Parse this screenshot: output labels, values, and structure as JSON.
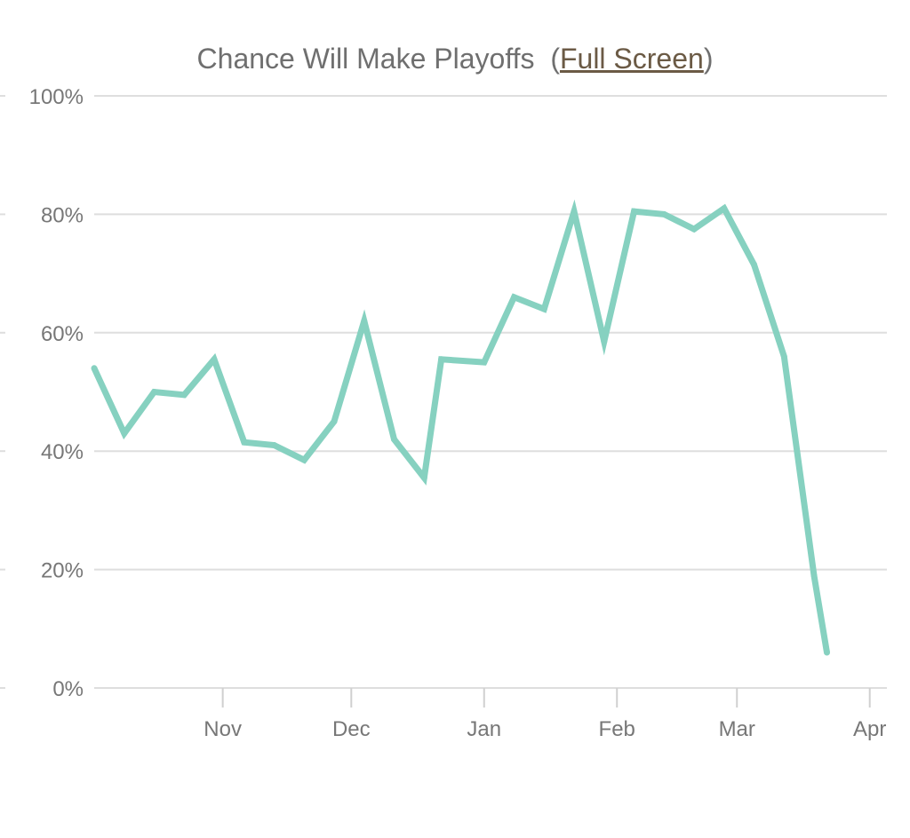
{
  "header": {
    "title": "Chance Will Make Playoffs",
    "open_paren": "(",
    "link_label": "Full Screen",
    "close_paren": ")"
  },
  "colors": {
    "line": "#86d1c0",
    "grid": "#dedede",
    "axis": "#d0d0d0",
    "text": "#777777",
    "link": "#6b5a45"
  },
  "chart_data": {
    "type": "line",
    "title": "Chance Will Make Playoffs",
    "xlabel": "",
    "ylabel": "",
    "ylim": [
      0,
      100
    ],
    "xlim": [
      "2018-10-02",
      "2019-04-07"
    ],
    "grid": true,
    "y_ticks": [
      {
        "value": 0,
        "label": "0%"
      },
      {
        "value": 20,
        "label": "20%"
      },
      {
        "value": 40,
        "label": "40%"
      },
      {
        "value": 60,
        "label": "60%"
      },
      {
        "value": 80,
        "label": "80%"
      },
      {
        "value": 100,
        "label": "100%"
      }
    ],
    "x_ticks": [
      {
        "date": "2018-11-01",
        "label": "Nov"
      },
      {
        "date": "2018-12-01",
        "label": "Dec"
      },
      {
        "date": "2019-01-01",
        "label": "Jan"
      },
      {
        "date": "2019-02-01",
        "label": "Feb"
      },
      {
        "date": "2019-03-01",
        "label": "Mar"
      },
      {
        "date": "2019-04-01",
        "label": "Apr"
      }
    ],
    "series": [
      {
        "points": [
          {
            "x": "2018-10-02",
            "y": 54
          },
          {
            "x": "2018-10-09",
            "y": 43
          },
          {
            "x": "2018-10-16",
            "y": 50
          },
          {
            "x": "2018-10-23",
            "y": 49.5
          },
          {
            "x": "2018-10-30",
            "y": 55.5
          },
          {
            "x": "2018-11-06",
            "y": 41.5
          },
          {
            "x": "2018-11-13",
            "y": 41
          },
          {
            "x": "2018-11-20",
            "y": 38.5
          },
          {
            "x": "2018-11-27",
            "y": 45
          },
          {
            "x": "2018-12-04",
            "y": 62
          },
          {
            "x": "2018-12-11",
            "y": 42
          },
          {
            "x": "2018-12-18",
            "y": 35.5
          },
          {
            "x": "2018-12-22",
            "y": 55.5
          },
          {
            "x": "2019-01-01",
            "y": 55
          },
          {
            "x": "2019-01-08",
            "y": 66
          },
          {
            "x": "2019-01-15",
            "y": 64
          },
          {
            "x": "2019-01-22",
            "y": 80.5
          },
          {
            "x": "2019-01-29",
            "y": 58.5
          },
          {
            "x": "2019-02-05",
            "y": 80.5
          },
          {
            "x": "2019-02-12",
            "y": 80
          },
          {
            "x": "2019-02-19",
            "y": 77.5
          },
          {
            "x": "2019-02-26",
            "y": 81
          },
          {
            "x": "2019-03-05",
            "y": 71.5
          },
          {
            "x": "2019-03-12",
            "y": 56
          },
          {
            "x": "2019-03-19",
            "y": 19
          },
          {
            "x": "2019-03-22",
            "y": 6
          }
        ]
      }
    ]
  }
}
